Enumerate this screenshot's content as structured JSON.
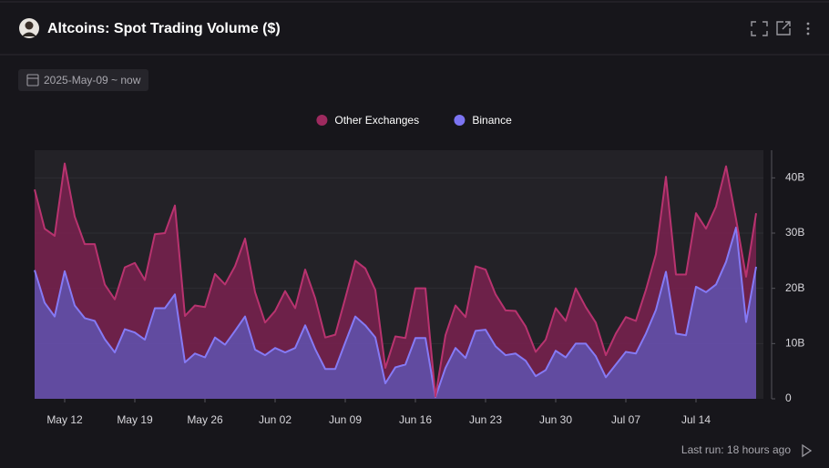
{
  "title": "Altcoins: Spot Trading Volume ($)",
  "date_range": "2025-May-09 ~ now",
  "footer": "Last run: 18 hours ago",
  "chart_data": {
    "type": "stacked_area",
    "categories": [
      null,
      null,
      null,
      "May 12",
      null,
      null,
      null,
      null,
      null,
      null,
      "May 19",
      null,
      null,
      null,
      null,
      null,
      null,
      "May 26",
      null,
      null,
      null,
      null,
      null,
      null,
      "Jun 02",
      null,
      null,
      null,
      null,
      null,
      null,
      "Jun 09",
      null,
      null,
      null,
      null,
      null,
      null,
      "Jun 16",
      null,
      null,
      null,
      null,
      null,
      null,
      "Jun 23",
      null,
      null,
      null,
      null,
      null,
      null,
      "Jun 30",
      null,
      null,
      null,
      null,
      null,
      null,
      "Jul 07",
      null,
      null,
      null,
      null,
      null,
      null,
      "Jul 14",
      null,
      null,
      null,
      null,
      null,
      null
    ],
    "series": [
      {
        "name": "Other Exchanges",
        "color": "#9e2a5f",
        "line_color": "#b8336f",
        "fill_color": "#7a2150",
        "values": [
          14.6,
          13.4,
          14.6,
          19.5,
          16.1,
          13.4,
          13.9,
          9.9,
          9.6,
          11.2,
          12.6,
          10.8,
          13.4,
          13.6,
          16.1,
          8.4,
          8.7,
          9.1,
          11.5,
          10.9,
          11.7,
          14.1,
          10.4,
          5.9,
          6.7,
          11.1,
          7.2,
          10.1,
          9.2,
          5.7,
          6.2,
          8,
          10.1,
          10.3,
          8.6,
          2.8,
          5.6,
          4.8,
          9,
          9,
          0.1,
          5.9,
          7.7,
          7.4,
          11.7,
          10.9,
          9.4,
          8.1,
          7.7,
          6.2,
          4.4,
          5.5,
          7.7,
          6.6,
          10,
          6.6,
          6.1,
          4,
          5.6,
          6.3,
          5.9,
          7.9,
          10.1,
          17.2,
          10.7,
          11,
          13.3,
          11.5,
          14.1,
          17.3,
          1.5,
          8.2,
          9.7
        ]
      },
      {
        "name": "Binance",
        "color": "#7c74f2",
        "line_color": "#857af5",
        "fill_color": "#6c52b6",
        "values": [
          23.3,
          17.4,
          14.9,
          23.1,
          16.9,
          14.6,
          14.1,
          10.8,
          8.4,
          12.6,
          12,
          10.7,
          16.4,
          16.4,
          18.9,
          6.6,
          8.2,
          7.5,
          11.1,
          9.8,
          12.3,
          14.9,
          8.9,
          7.9,
          9.2,
          8.4,
          9.2,
          13.3,
          9,
          5.4,
          5.4,
          10.2,
          14.9,
          13.3,
          11.1,
          2.8,
          5.7,
          6.2,
          11,
          11,
          0.3,
          5.6,
          9.2,
          7.4,
          12.3,
          12.5,
          9.5,
          7.9,
          8.2,
          6.9,
          4.1,
          5.2,
          8.7,
          7.5,
          10,
          10,
          7.7,
          3.9,
          6.2,
          8.5,
          8.2,
          11.8,
          16.1,
          23,
          11.8,
          11.5,
          20.3,
          19.3,
          20.7,
          24.8,
          31,
          13.9,
          23.9
        ]
      }
    ],
    "stacked": true,
    "ylim": [
      0,
      45
    ],
    "yticks": [
      {
        "value": 0,
        "label": "0"
      },
      {
        "value": 10,
        "label": "10B"
      },
      {
        "value": 20,
        "label": "20B"
      },
      {
        "value": 30,
        "label": "30B"
      },
      {
        "value": 40,
        "label": "40B"
      }
    ],
    "y_axis_side": "right",
    "grid": true,
    "legend": "top"
  }
}
